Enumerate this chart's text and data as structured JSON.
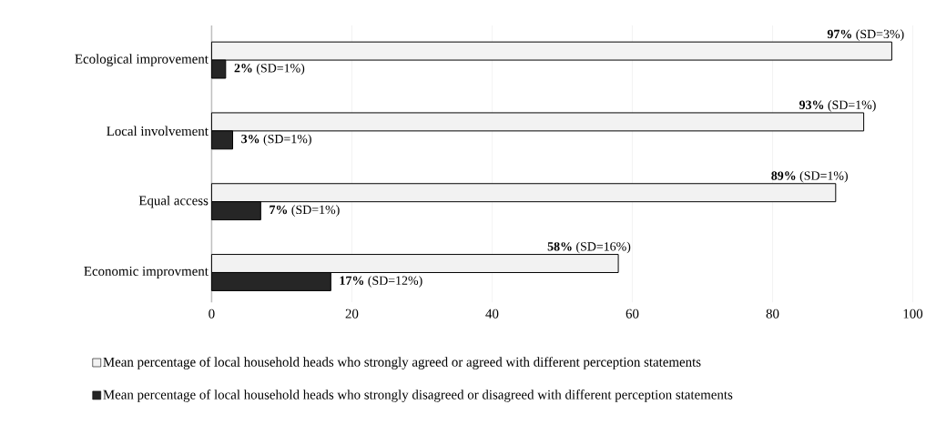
{
  "chart_data": {
    "type": "bar",
    "orientation": "horizontal",
    "categories": [
      "Ecological improvement",
      "Local involvement",
      "Equal access",
      "Economic improvment"
    ],
    "series": [
      {
        "name": "Mean percentage of local household heads who strongly agreed or agreed with different perception statements",
        "color": "#f2f2f2",
        "values": [
          97,
          93,
          89,
          58
        ],
        "value_labels": [
          "**97%** (SD=3%)",
          "**93%** (SD=1%)",
          "**89%** (SD=1%)",
          "**58%** (SD=16%)"
        ]
      },
      {
        "name": "Mean percentage of local household heads who strongly disagreed or disagreed with different perception statements",
        "color": "#262626",
        "values": [
          2,
          3,
          7,
          17
        ],
        "value_labels": [
          "**2%** (SD=1%)",
          "**3%** (SD=1%)",
          "**7%** (SD=1%)",
          "**17%** (SD=12%)"
        ]
      }
    ],
    "xlim": [
      0,
      100
    ],
    "xticks": [
      0,
      20,
      40,
      60,
      80,
      100
    ],
    "grid": "x",
    "legend": "bottom"
  }
}
